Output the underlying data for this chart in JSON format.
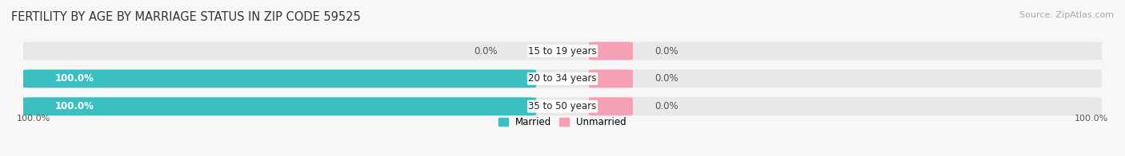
{
  "title": "FERTILITY BY AGE BY MARRIAGE STATUS IN ZIP CODE 59525",
  "source_text": "Source: ZipAtlas.com",
  "categories": [
    "15 to 19 years",
    "20 to 34 years",
    "35 to 50 years"
  ],
  "married_values": [
    0.0,
    100.0,
    100.0
  ],
  "unmarried_values": [
    0.0,
    0.0,
    0.0
  ],
  "married_color": "#3bbfc0",
  "unmarried_color": "#f5a0b4",
  "bar_bg_color": "#e8e8e8",
  "title_fontsize": 10.5,
  "label_fontsize": 8.5,
  "source_fontsize": 8,
  "tick_fontsize": 8,
  "bg_color": "#f7f7f7",
  "max_val": 100.0,
  "x_left_label": "100.0%",
  "x_right_label": "100.0%"
}
